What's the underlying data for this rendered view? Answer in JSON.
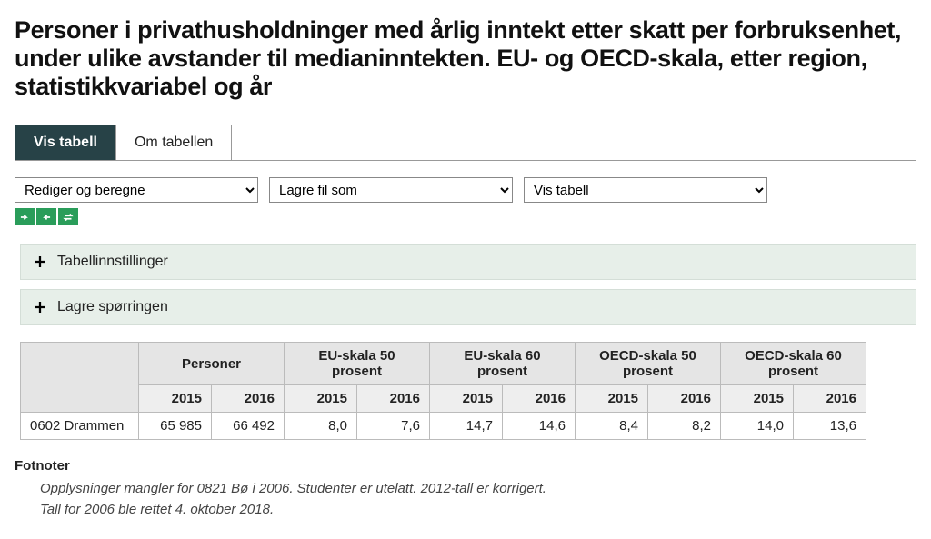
{
  "header": {
    "title": "Personer i privathusholdninger med årlig inntekt etter skatt per forbruksenhet, under ulike avstander til medianinntekten. EU- og OECD-skala, etter region, statistikkvariabel og år"
  },
  "tabs": {
    "items": [
      {
        "label": "Vis tabell",
        "active": true
      },
      {
        "label": "Om tabellen",
        "active": false
      }
    ]
  },
  "toolbar": {
    "dropdowns": [
      {
        "label": "Rediger og beregne"
      },
      {
        "label": "Lagre fil som"
      },
      {
        "label": "Vis tabell"
      }
    ],
    "icons": [
      {
        "name": "rotate-cw"
      },
      {
        "name": "rotate-ccw"
      },
      {
        "name": "swap"
      }
    ]
  },
  "collapsibles": [
    {
      "label": "Tabellinnstillinger"
    },
    {
      "label": "Lagre spørringen"
    }
  ],
  "table": {
    "groups": [
      {
        "label": "Personer",
        "span": 2
      },
      {
        "label": "EU-skala 50 prosent",
        "span": 2
      },
      {
        "label": "EU-skala 60 prosent",
        "span": 2
      },
      {
        "label": "OECD-skala 50 prosent",
        "span": 2
      },
      {
        "label": "OECD-skala 60 prosent",
        "span": 2
      }
    ],
    "years": [
      "2015",
      "2016",
      "2015",
      "2016",
      "2015",
      "2016",
      "2015",
      "2016",
      "2015",
      "2016"
    ],
    "rows": [
      {
        "label": "0602 Drammen",
        "cells": [
          "65 985",
          "66 492",
          "8,0",
          "7,6",
          "14,7",
          "14,6",
          "8,4",
          "8,2",
          "14,0",
          "13,6"
        ]
      }
    ],
    "widths": {
      "row_label": 130,
      "cell": 80
    }
  },
  "footnotes": {
    "title": "Fotnoter",
    "lines": [
      "Opplysninger mangler for 0821 Bø i 2006. Studenter er utelatt. 2012-tall er korrigert.",
      "Tall for 2006 ble rettet 4. oktober 2018."
    ]
  },
  "colors": {
    "tab_active_bg": "#274247",
    "mini_btn_bg": "#2a9d5a",
    "collapse_bg": "#e7efe9"
  }
}
